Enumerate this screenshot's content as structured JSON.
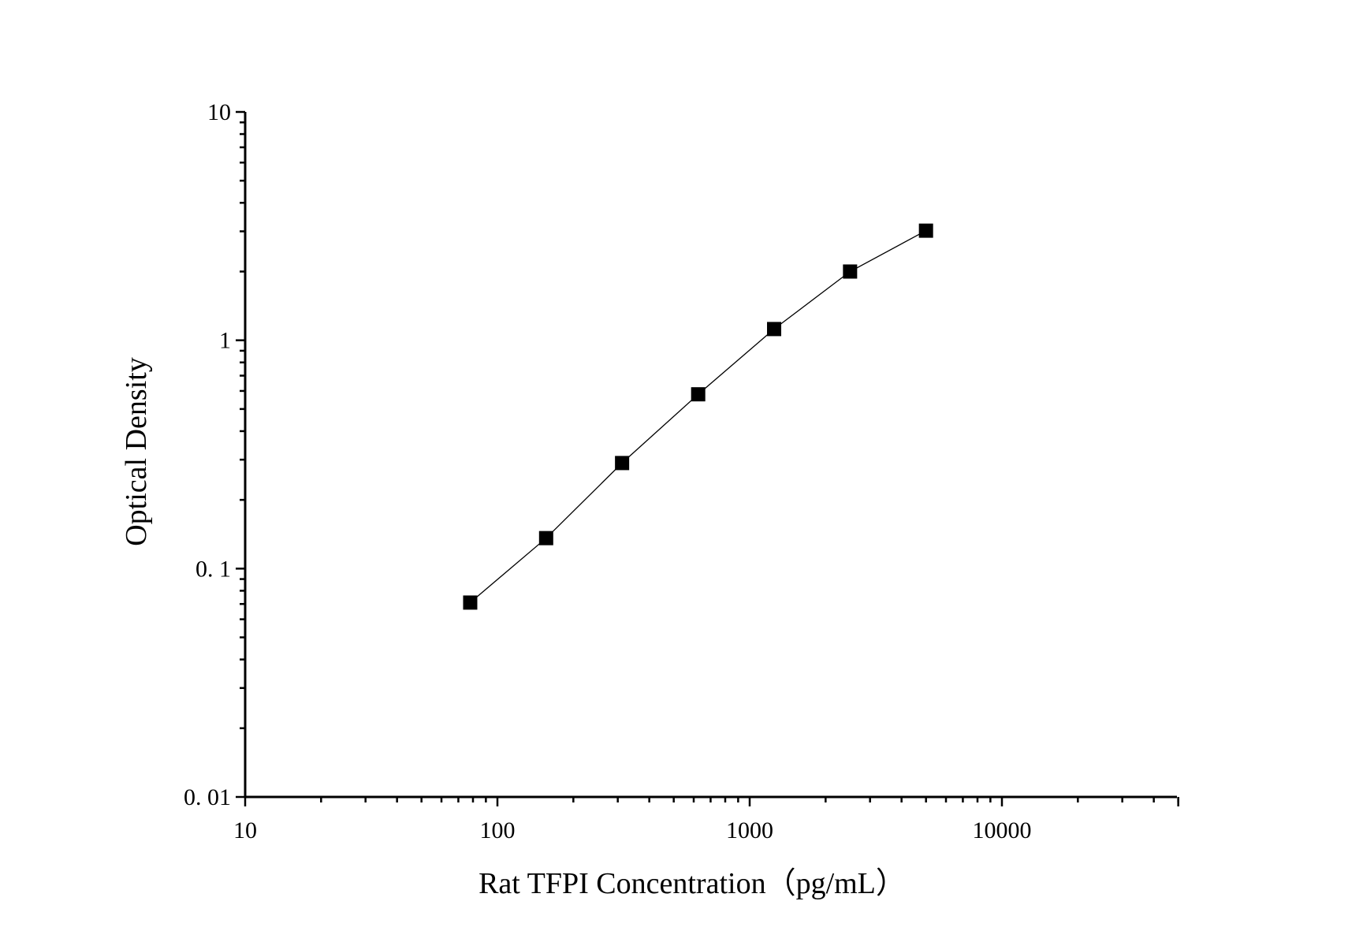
{
  "chart_data": {
    "type": "scatter",
    "x_scale": "log",
    "y_scale": "log",
    "xlabel": "Rat TFPI Concentration（pg/mL）",
    "ylabel": "Optical Density",
    "xlim": [
      10,
      50000
    ],
    "ylim": [
      0.01,
      10
    ],
    "x_ticks": [
      {
        "value": 10,
        "label": "10"
      },
      {
        "value": 100,
        "label": "100"
      },
      {
        "value": 1000,
        "label": "1000"
      },
      {
        "value": 10000,
        "label": "10000"
      }
    ],
    "y_ticks": [
      {
        "value": 0.01,
        "label": "0. 01"
      },
      {
        "value": 0.1,
        "label": "0. 1"
      },
      {
        "value": 1,
        "label": "1"
      },
      {
        "value": 10,
        "label": "10"
      }
    ],
    "series": [
      {
        "marker": "square",
        "connected": true,
        "x": [
          78,
          156,
          312,
          625,
          1250,
          2500,
          5000
        ],
        "y": [
          0.071,
          0.136,
          0.29,
          0.58,
          1.12,
          2.0,
          3.02
        ]
      }
    ],
    "grid": false,
    "legend": "none",
    "colors": {
      "marker": "#000000",
      "line": "#000000",
      "axis": "#000000"
    }
  }
}
